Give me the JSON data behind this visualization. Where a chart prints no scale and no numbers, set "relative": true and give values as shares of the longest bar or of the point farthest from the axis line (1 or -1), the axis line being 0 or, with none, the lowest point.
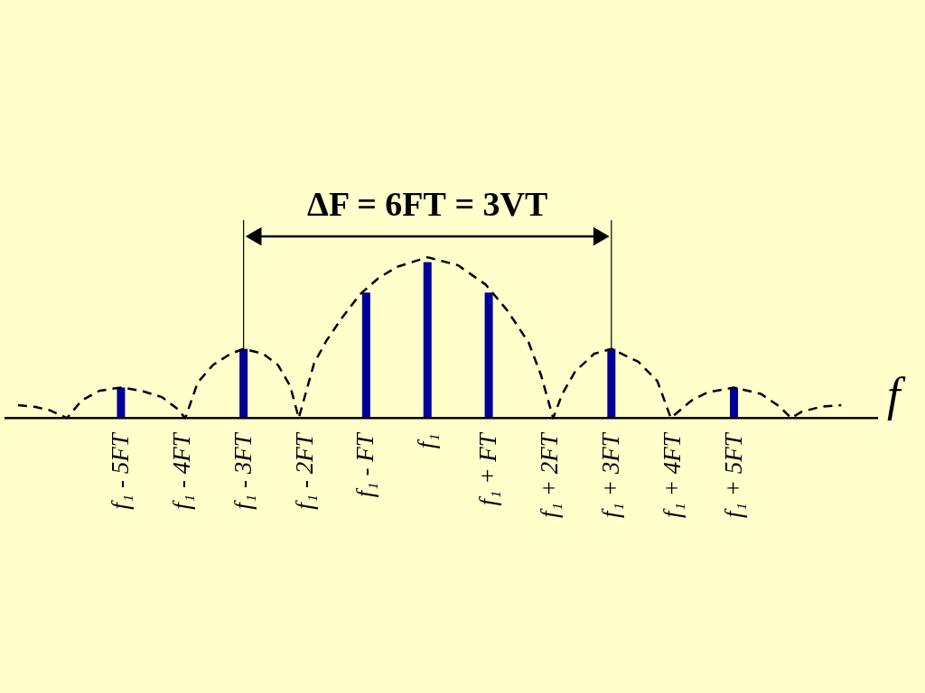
{
  "chart_data": {
    "type": "bar",
    "relative": true,
    "xlabel": "f",
    "xlim": [
      -6.9,
      7.35
    ],
    "xticks": [
      {
        "value": -5,
        "label": "f₁ - 5FТ"
      },
      {
        "value": -4,
        "label": "f₁ - 4FТ"
      },
      {
        "value": -3,
        "label": "f₁ - 3FТ"
      },
      {
        "value": -2,
        "label": "f₁ - 2FТ"
      },
      {
        "value": -1,
        "label": "f₁ - FТ"
      },
      {
        "value": 0,
        "label": "f₁"
      },
      {
        "value": 1,
        "label": "f₁ + FТ"
      },
      {
        "value": 2,
        "label": "f₁ + 2FТ"
      },
      {
        "value": 3,
        "label": "f₁ + 3FТ"
      },
      {
        "value": 4,
        "label": "f₁ + 4FТ"
      },
      {
        "value": 5,
        "label": "f₁ + 5FТ"
      }
    ],
    "series": [
      {
        "color": "#000099",
        "x": [
          -5,
          -3,
          -1,
          0,
          1,
          3,
          5
        ],
        "values": [
          0.19,
          0.43,
          0.78,
          0.97,
          0.78,
          0.43,
          0.19
        ]
      },
      {
        "type": "line",
        "color": "#000000",
        "line_style": "dashed",
        "x": [
          -6.68,
          -6.41,
          -6.17,
          -5.88,
          -5.64,
          -5.35,
          -5.0,
          -4.67,
          -4.33,
          -4.09,
          -3.95,
          -3.75,
          -3.5,
          -3.21,
          -3.0,
          -2.68,
          -2.44,
          -2.24,
          -2.1,
          -1.85,
          -1.65,
          -1.4,
          -1.1,
          -0.8,
          -0.5,
          0,
          0.5,
          0.95,
          1.3,
          1.65,
          1.85,
          2.05,
          2.2,
          2.41,
          2.72,
          3.0,
          3.44,
          3.75,
          3.97,
          4.31,
          4.57,
          5.0,
          5.44,
          5.75,
          5.93,
          6.11,
          6.42,
          6.75
        ],
        "values": [
          0.08,
          0.07,
          0.05,
          0,
          0.11,
          0.17,
          0.19,
          0.17,
          0.13,
          0.06,
          0,
          0.22,
          0.33,
          0.4,
          0.43,
          0.4,
          0.33,
          0.2,
          0,
          0.34,
          0.48,
          0.62,
          0.77,
          0.87,
          0.94,
          1.0,
          0.95,
          0.83,
          0.67,
          0.47,
          0.27,
          0,
          0.15,
          0.29,
          0.4,
          0.43,
          0.35,
          0.23,
          0,
          0.11,
          0.16,
          0.19,
          0.15,
          0.07,
          0,
          0.04,
          0.07,
          0.08
        ]
      }
    ],
    "ref_lines": [
      {
        "axis": "x",
        "value": -3,
        "color": "#000000"
      },
      {
        "axis": "x",
        "value": 3,
        "color": "#000000"
      }
    ],
    "annotations": [
      "ΔF = 6FТ = 3VТ"
    ]
  }
}
